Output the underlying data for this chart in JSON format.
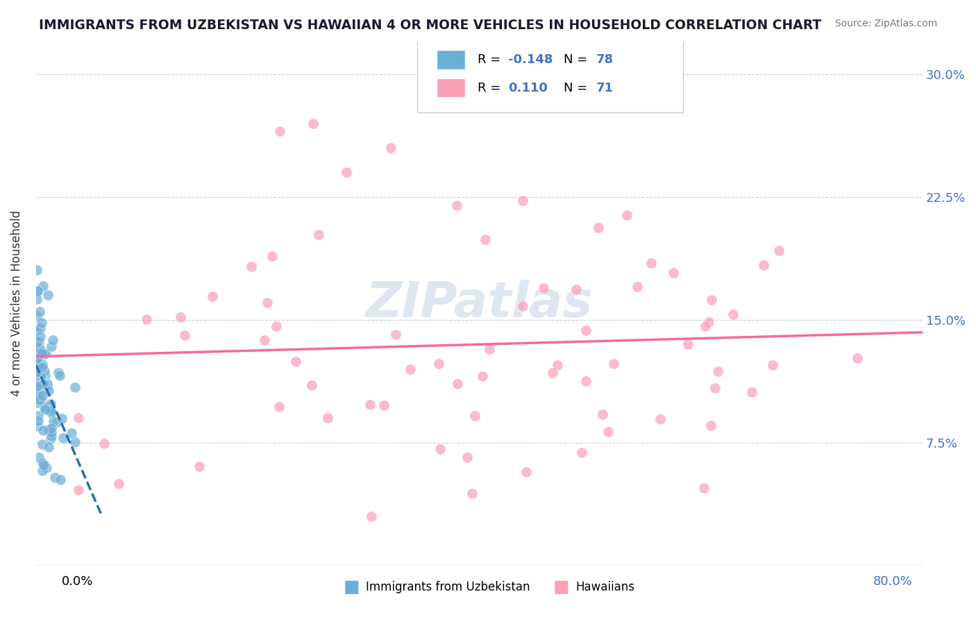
{
  "title": "IMMIGRANTS FROM UZBEKISTAN VS HAWAIIAN 4 OR MORE VEHICLES IN HOUSEHOLD CORRELATION CHART",
  "source": "Source: ZipAtlas.com",
  "ylabel": "4 or more Vehicles in Household",
  "xlim": [
    0.0,
    0.8
  ],
  "ylim": [
    0.0,
    0.32
  ],
  "color_blue": "#6baed6",
  "color_blue_line": "#2171b5",
  "color_pink": "#fa9fb5",
  "color_pink_line": "#f768a1",
  "watermark_text": "ZIPatlas",
  "watermark_color": "#c8d8e8"
}
